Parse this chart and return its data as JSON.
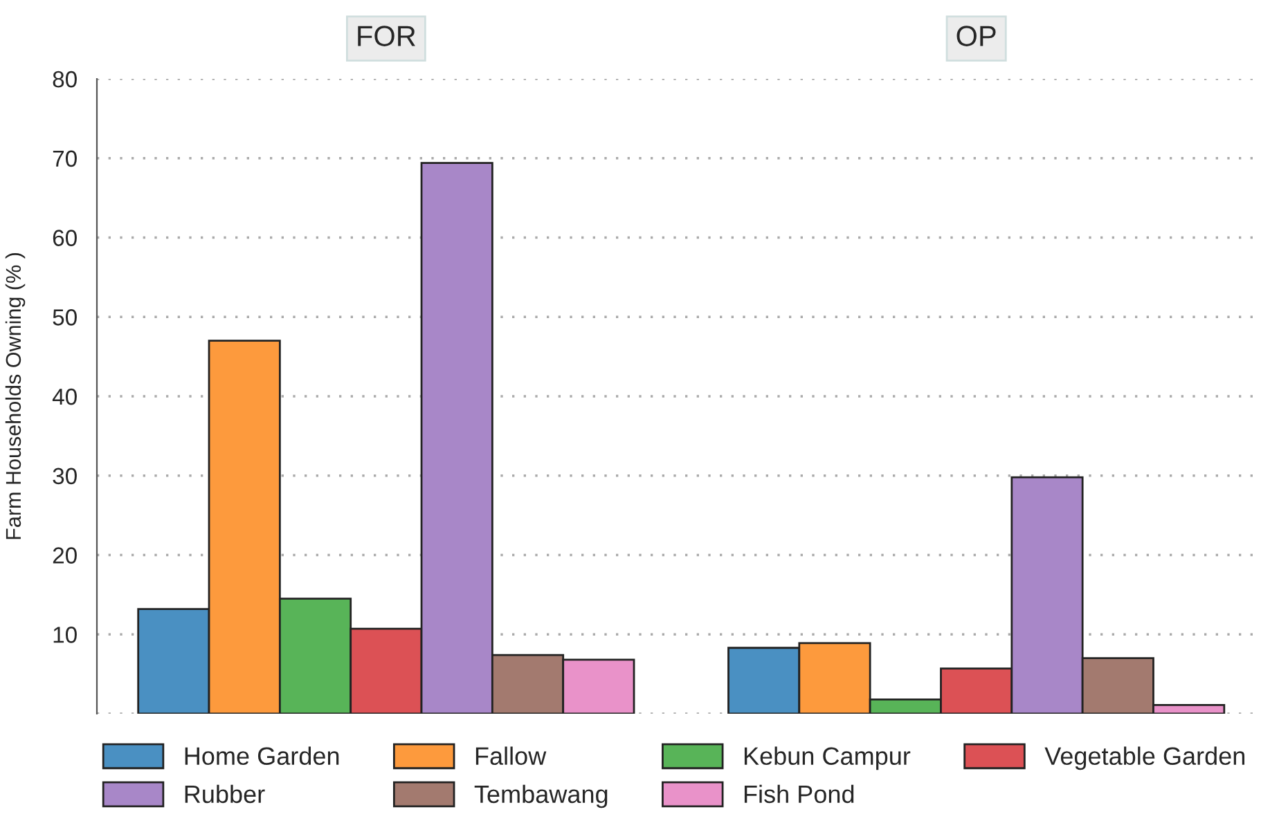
{
  "chart_data": {
    "type": "bar",
    "ylabel": "Farm Households Owning (% )",
    "categories": [
      "FOR",
      "OP"
    ],
    "series": [
      {
        "name": "Home Garden",
        "color": "#4a90c2",
        "values": [
          13.2,
          8.3
        ]
      },
      {
        "name": "Fallow",
        "color": "#fd9a3d",
        "values": [
          47.0,
          8.9
        ]
      },
      {
        "name": "Kebun Campur",
        "color": "#58b458",
        "values": [
          14.5,
          1.8
        ]
      },
      {
        "name": "Vegetable Garden",
        "color": "#dc5155",
        "values": [
          10.7,
          5.7
        ]
      },
      {
        "name": "Rubber",
        "color": "#a887c8",
        "values": [
          69.4,
          29.8
        ]
      },
      {
        "name": "Tembawang",
        "color": "#a37a6f",
        "values": [
          7.4,
          7.0
        ]
      },
      {
        "name": "Fish Pond",
        "color": "#e992c9",
        "values": [
          6.8,
          1.1
        ]
      }
    ],
    "ylim": [
      0,
      80
    ],
    "yticks": [
      {
        "value": 0,
        "label": null
      },
      10,
      20,
      30,
      40,
      50,
      60,
      70,
      80
    ],
    "grid": "y",
    "legend": "bottom"
  }
}
